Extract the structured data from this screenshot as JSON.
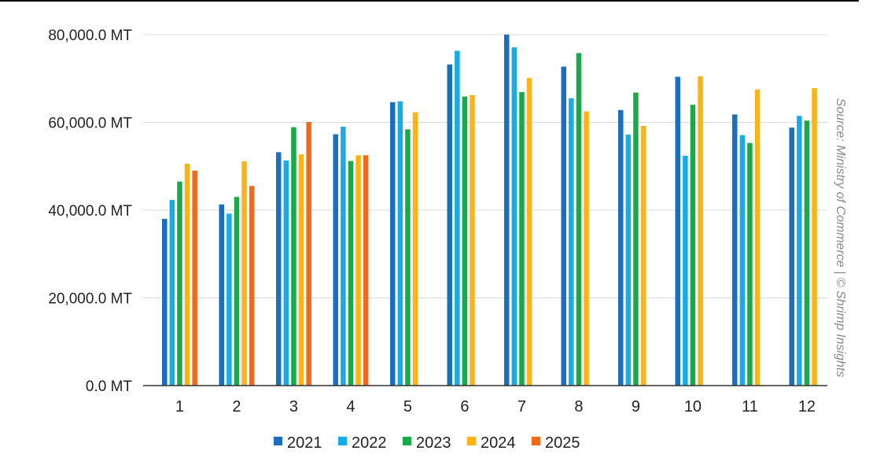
{
  "chart_data": {
    "type": "bar",
    "categories": [
      "1",
      "2",
      "3",
      "4",
      "5",
      "6",
      "7",
      "8",
      "9",
      "10",
      "11",
      "12"
    ],
    "series": [
      {
        "name": "2021",
        "color": "#1a6fbf",
        "values": [
          38000,
          41300,
          53200,
          57300,
          64600,
          73200,
          80000,
          72700,
          62800,
          70400,
          61800,
          58800
        ]
      },
      {
        "name": "2022",
        "color": "#19aae8",
        "values": [
          42300,
          39200,
          51300,
          59000,
          64800,
          76300,
          77100,
          65500,
          57200,
          52400,
          57100,
          61500
        ]
      },
      {
        "name": "2023",
        "color": "#19a84a",
        "values": [
          46500,
          43000,
          58900,
          51200,
          58400,
          65900,
          66900,
          75800,
          66800,
          64000,
          55300,
          60400
        ]
      },
      {
        "name": "2024",
        "color": "#fbb413",
        "values": [
          50600,
          51100,
          52700,
          52500,
          62300,
          66200,
          70100,
          62500,
          59200,
          70500,
          67500,
          67800
        ]
      },
      {
        "name": "2025",
        "color": "#f16a1b",
        "values": [
          49000,
          45500,
          60100,
          52500,
          null,
          null,
          null,
          null,
          null,
          null,
          null,
          null
        ]
      }
    ],
    "y_ticks": [
      "0.0 MT",
      "20,000.0 MT",
      "40,000.0 MT",
      "60,000.0 MT",
      "80,000.0 MT"
    ],
    "ylim": [
      0,
      80000
    ],
    "grid": true,
    "legend_position": "bottom-center",
    "source_note": "Source: Ministry of Commerce | © Shrimp Insights"
  }
}
